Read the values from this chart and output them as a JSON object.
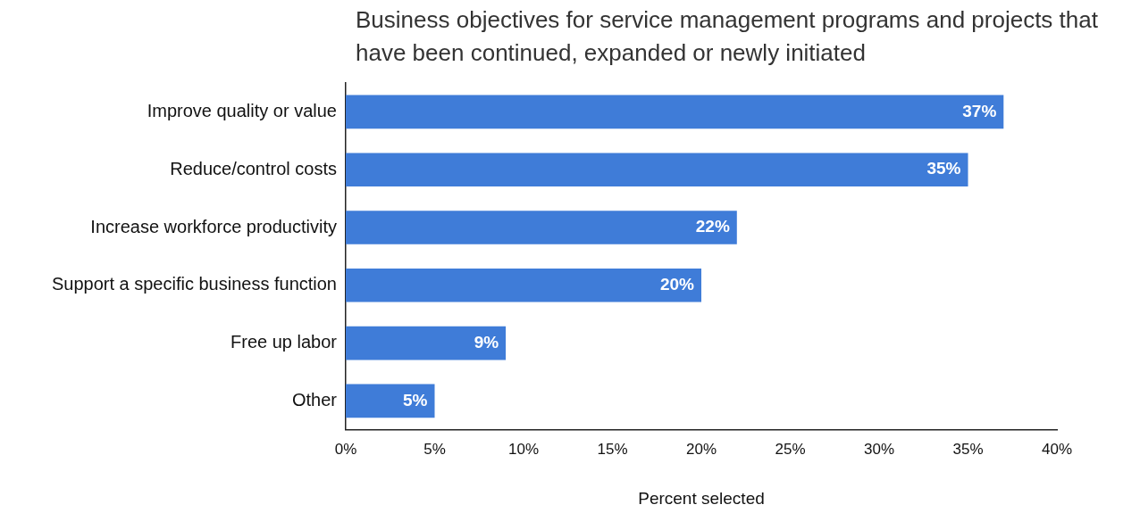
{
  "chart_data": {
    "type": "bar",
    "orientation": "horizontal",
    "title": "Business objectives for service management programs and projects that have been continued, expanded or newly initiated",
    "xlabel": "Percent selected",
    "categories": [
      "Improve quality or value",
      "Reduce/control costs",
      "Increase workforce productivity",
      "Support a specific business function",
      "Free up labor",
      "Other"
    ],
    "values": [
      37,
      35,
      22,
      20,
      9,
      5
    ],
    "value_labels": [
      "37%",
      "35%",
      "22%",
      "20%",
      "9%",
      "5%"
    ],
    "color": "#3f7cd8",
    "xlim": [
      0,
      40
    ],
    "xticks": [
      {
        "value": 0,
        "label": "0%"
      },
      {
        "value": 5,
        "label": "5%"
      },
      {
        "value": 10,
        "label": "10%"
      },
      {
        "value": 15,
        "label": "15%"
      },
      {
        "value": 20,
        "label": "20%"
      },
      {
        "value": 25,
        "label": "25%"
      },
      {
        "value": 30,
        "label": "30%"
      },
      {
        "value": 35,
        "label": "35%"
      },
      {
        "value": 40,
        "label": "40%"
      }
    ],
    "grid": false,
    "legend": false
  }
}
